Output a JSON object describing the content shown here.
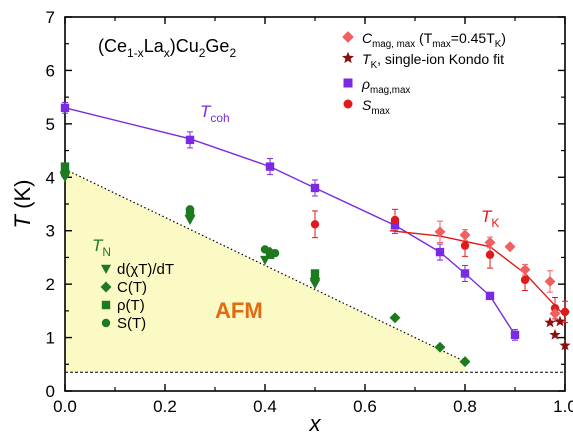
{
  "colors": {
    "tn": "#1e7a1e",
    "coh": "#7a2ae0",
    "tk": "#e01a1a",
    "cmag": "#f06060",
    "tkfit": "#8b1010",
    "afm_fill": "#fbf9c4"
  },
  "chart_data": {
    "type": "scatter",
    "title": "(Ce1-xLax)Cu2Ge2",
    "xlabel": "x",
    "ylabel": "T (K)",
    "xlim": [
      0,
      1.0
    ],
    "ylim": [
      0,
      7
    ],
    "xticks": [
      "0.0",
      "0.2",
      "0.4",
      "0.6",
      "0.8",
      "1.0"
    ],
    "yticks": [
      "0",
      "1",
      "2",
      "3",
      "4",
      "5",
      "6",
      "7"
    ],
    "labels": {
      "tcoh": "T",
      "tcoh_sub": "coh",
      "tk": "T",
      "tk_sub": "K",
      "tn": "T",
      "tn_sub": "N",
      "afm": "AFM"
    },
    "legend_right": [
      {
        "marker": "diamond",
        "color": "cmag",
        "text": "C",
        "sub": "mag, max",
        "rest": " (T",
        "sub2": "max",
        "rest2": "=0.45T",
        "sub3": "K",
        "rest3": ")"
      },
      {
        "marker": "star",
        "color": "tkfit",
        "text": "T",
        "sub": "K",
        "rest": ", single-ion Kondo fit"
      },
      {
        "marker": "square",
        "color": "coh",
        "text": "ρ",
        "sub": "mag,max",
        "rest": ""
      },
      {
        "marker": "circle",
        "color": "tk",
        "text": "S",
        "sub": "max",
        "rest": ""
      }
    ],
    "legend_left": [
      {
        "marker": "triangle",
        "text": "d(χT)/dT"
      },
      {
        "marker": "diamond",
        "text": "C(T)"
      },
      {
        "marker": "square",
        "text": "ρ(T)"
      },
      {
        "marker": "circle",
        "text": "S(T)"
      }
    ],
    "series": [
      {
        "name": "d(χT)/dT",
        "marker": "triangle",
        "color": "tn",
        "points": [
          [
            0.0,
            4.0
          ],
          [
            0.25,
            3.2
          ],
          [
            0.4,
            2.45
          ],
          [
            0.5,
            2.0
          ]
        ]
      },
      {
        "name": "C(T)",
        "marker": "diamond",
        "color": "tn",
        "points": [
          [
            0.0,
            4.1
          ],
          [
            0.25,
            3.28
          ],
          [
            0.41,
            2.6
          ],
          [
            0.5,
            2.1
          ],
          [
            0.66,
            1.37
          ],
          [
            0.75,
            0.82
          ],
          [
            0.8,
            0.55
          ]
        ]
      },
      {
        "name": "ρ(T)",
        "marker": "square",
        "color": "tn",
        "points": [
          [
            0.0,
            4.2
          ],
          [
            0.25,
            3.35
          ],
          [
            0.41,
            2.55
          ],
          [
            0.5,
            2.2
          ]
        ]
      },
      {
        "name": "S(T)",
        "marker": "circle",
        "color": "tn",
        "points": [
          [
            0.0,
            4.05
          ],
          [
            0.25,
            3.4
          ],
          [
            0.4,
            2.65
          ],
          [
            0.42,
            2.58
          ]
        ]
      },
      {
        "name": "ρmag,max",
        "marker": "square",
        "color": "coh",
        "points": [
          [
            0.0,
            5.3
          ],
          [
            0.25,
            4.7
          ],
          [
            0.41,
            4.2
          ],
          [
            0.5,
            3.8
          ],
          [
            0.66,
            3.1
          ],
          [
            0.75,
            2.6
          ],
          [
            0.8,
            2.2
          ],
          [
            0.85,
            1.78
          ],
          [
            0.9,
            1.05
          ]
        ],
        "yerr": [
          0.1,
          0.15,
          0.15,
          0.15,
          0.15,
          0.15,
          0.15,
          0.0,
          0.1
        ]
      },
      {
        "name": "Smax",
        "marker": "circle",
        "color": "tk",
        "points": [
          [
            0.5,
            3.12
          ],
          [
            0.66,
            3.2
          ],
          [
            0.8,
            2.72
          ],
          [
            0.85,
            2.55
          ],
          [
            0.92,
            2.08
          ],
          [
            0.98,
            1.55
          ],
          [
            1.0,
            1.48
          ]
        ],
        "yerr": [
          0.25,
          0.2,
          0.2,
          0.25,
          0.2,
          0.2,
          0.2
        ]
      },
      {
        "name": "Cmag,max",
        "marker": "diamond",
        "color": "cmag",
        "points": [
          [
            0.75,
            2.98
          ],
          [
            0.8,
            2.92
          ],
          [
            0.85,
            2.78
          ],
          [
            0.89,
            2.7
          ],
          [
            0.92,
            2.27
          ],
          [
            0.97,
            2.05
          ],
          [
            0.98,
            1.45
          ]
        ],
        "yerr": [
          0.2,
          0.1,
          0.1,
          0.0,
          0.1,
          0.2,
          0.15
        ]
      },
      {
        "name": "TK single-ion Kondo fit",
        "marker": "star",
        "color": "tkfit",
        "points": [
          [
            0.97,
            1.28
          ],
          [
            0.98,
            1.05
          ],
          [
            0.99,
            1.3
          ],
          [
            1.0,
            0.85
          ]
        ]
      }
    ],
    "curves": {
      "coh": [
        [
          0.0,
          5.3
        ],
        [
          0.25,
          4.72
        ],
        [
          0.41,
          4.2
        ],
        [
          0.5,
          3.8
        ],
        [
          0.66,
          3.1
        ],
        [
          0.75,
          2.6
        ],
        [
          0.8,
          2.2
        ],
        [
          0.85,
          1.78
        ],
        [
          0.9,
          1.05
        ]
      ],
      "tk": [
        [
          0.65,
          3.0
        ],
        [
          0.75,
          2.9
        ],
        [
          0.85,
          2.7
        ],
        [
          0.92,
          2.2
        ],
        [
          0.97,
          1.7
        ],
        [
          1.0,
          1.4
        ]
      ],
      "afm_boundary": [
        [
          0.0,
          4.15
        ],
        [
          0.8,
          0.55
        ]
      ],
      "baseline_y": 0.35
    }
  }
}
